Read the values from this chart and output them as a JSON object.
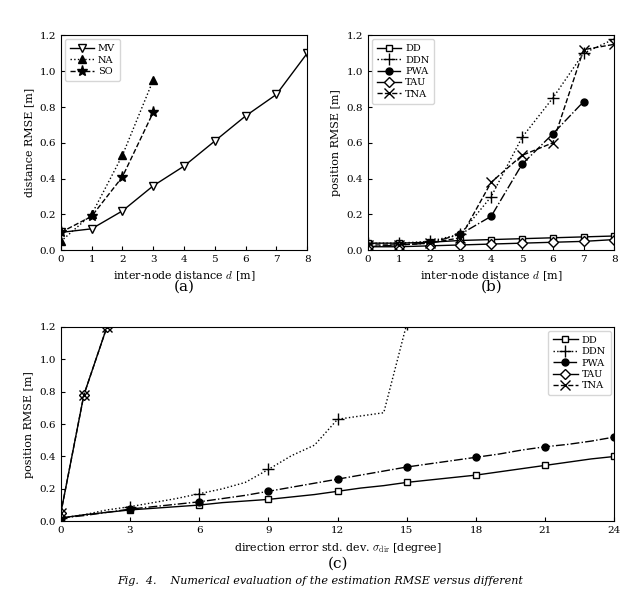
{
  "subplot_a": {
    "xlabel": "inter-node distance $d$ [m]",
    "ylabel": "distance RMSE [m]",
    "xlim": [
      0,
      8
    ],
    "ylim": [
      0,
      1.2
    ],
    "yticks": [
      0,
      0.2,
      0.4,
      0.6,
      0.8,
      1.0,
      1.2
    ],
    "xticks": [
      0,
      1,
      2,
      3,
      4,
      5,
      6,
      7,
      8
    ],
    "legend_loc": "upper left",
    "label": "(a)",
    "series": {
      "MV": {
        "x": [
          0,
          1,
          2,
          3,
          4,
          5,
          6,
          7,
          8
        ],
        "y": [
          0.1,
          0.12,
          0.22,
          0.36,
          0.47,
          0.61,
          0.75,
          0.87,
          1.1
        ],
        "linestyle": "-",
        "marker": "v",
        "mfc": "white",
        "markersize": 6,
        "markevery": 1
      },
      "NA": {
        "x": [
          0,
          1,
          2,
          3
        ],
        "y": [
          0.05,
          0.2,
          0.53,
          0.95
        ],
        "linestyle": ":",
        "marker": "^",
        "mfc": "black",
        "markersize": 6,
        "markevery": 1
      },
      "SO": {
        "x": [
          0,
          1,
          2,
          3
        ],
        "y": [
          0.1,
          0.19,
          0.41,
          0.77
        ],
        "linestyle": "--",
        "marker": "*",
        "mfc": "black",
        "markersize": 8,
        "markevery": 1
      }
    }
  },
  "subplot_b": {
    "xlabel": "inter-node distance $d$ [m]",
    "ylabel": "position RMSE [m]",
    "xlim": [
      0,
      8
    ],
    "ylim": [
      0,
      1.2
    ],
    "yticks": [
      0,
      0.2,
      0.4,
      0.6,
      0.8,
      1.0,
      1.2
    ],
    "xticks": [
      0,
      1,
      2,
      3,
      4,
      5,
      6,
      7,
      8
    ],
    "legend_loc": "upper left",
    "label": "(b)",
    "series": {
      "DD": {
        "x": [
          0,
          1,
          2,
          3,
          4,
          5,
          6,
          7,
          8
        ],
        "y": [
          0.04,
          0.04,
          0.045,
          0.055,
          0.06,
          0.065,
          0.07,
          0.075,
          0.08
        ],
        "linestyle": "-",
        "marker": "s",
        "mfc": "white",
        "markersize": 5,
        "markevery": 1
      },
      "DDN": {
        "x": [
          0,
          1,
          2,
          3,
          4,
          5,
          6,
          7,
          8
        ],
        "y": [
          0.04,
          0.04,
          0.05,
          0.09,
          0.3,
          0.63,
          0.85,
          1.1,
          1.18
        ],
        "linestyle": ":",
        "marker": "+",
        "mfc": "black",
        "markersize": 8,
        "markevery": 1
      },
      "PWA": {
        "x": [
          0,
          1,
          2,
          3,
          4,
          5,
          6,
          7
        ],
        "y": [
          0.02,
          0.03,
          0.04,
          0.09,
          0.19,
          0.48,
          0.65,
          0.83
        ],
        "linestyle": "-.",
        "marker": "o",
        "mfc": "black",
        "markersize": 5,
        "markevery": 1
      },
      "TAU": {
        "x": [
          0,
          1,
          2,
          3,
          4,
          5,
          6,
          7,
          8
        ],
        "y": [
          0.02,
          0.02,
          0.025,
          0.03,
          0.035,
          0.04,
          0.045,
          0.05,
          0.06
        ],
        "linestyle": "-",
        "marker": "D",
        "mfc": "white",
        "markersize": 5,
        "markevery": 1
      },
      "TNA": {
        "x": [
          0,
          1,
          2,
          3,
          4,
          5,
          6,
          7,
          8
        ],
        "y": [
          0.03,
          0.03,
          0.04,
          0.07,
          0.38,
          0.53,
          0.6,
          1.12,
          1.15
        ],
        "linestyle": "--",
        "marker": "x",
        "mfc": "black",
        "markersize": 7,
        "markevery": 1
      }
    }
  },
  "subplot_c": {
    "xlabel": "direction error std. dev. $\\sigma_{\\mathrm{dir}}$ [degree]",
    "ylabel": "position RMSE [m]",
    "xlim": [
      0,
      24
    ],
    "ylim": [
      0,
      1.2
    ],
    "yticks": [
      0,
      0.2,
      0.4,
      0.6,
      0.8,
      1.0,
      1.2
    ],
    "xticks": [
      0,
      3,
      6,
      9,
      12,
      15,
      18,
      21,
      24
    ],
    "legend_loc": "upper right",
    "label": "(c)",
    "series": {
      "DD": {
        "x": [
          0,
          1,
          2,
          3,
          4,
          5,
          6,
          7,
          8,
          9,
          10,
          11,
          12,
          13,
          14,
          15,
          16,
          17,
          18,
          19,
          20,
          21,
          22,
          23,
          24
        ],
        "y": [
          0.02,
          0.04,
          0.055,
          0.07,
          0.08,
          0.09,
          0.1,
          0.115,
          0.125,
          0.135,
          0.15,
          0.165,
          0.185,
          0.205,
          0.22,
          0.24,
          0.255,
          0.27,
          0.285,
          0.305,
          0.325,
          0.345,
          0.365,
          0.385,
          0.4
        ],
        "linestyle": "-",
        "marker": "s",
        "mfc": "white",
        "markersize": 5,
        "markevery": 3
      },
      "DDN": {
        "x": [
          0,
          1,
          2,
          3,
          4,
          5,
          6,
          7,
          8,
          9,
          10,
          11,
          12,
          13,
          14,
          15,
          16,
          17
        ],
        "y": [
          0.02,
          0.04,
          0.07,
          0.09,
          0.115,
          0.14,
          0.17,
          0.2,
          0.24,
          0.32,
          0.405,
          0.47,
          0.63,
          0.65,
          0.67,
          1.22,
          1.2,
          1.2
        ],
        "linestyle": ":",
        "marker": "+",
        "mfc": "black",
        "markersize": 8,
        "markevery": 3
      },
      "PWA": {
        "x": [
          0,
          1,
          2,
          3,
          4,
          5,
          6,
          7,
          8,
          9,
          10,
          11,
          12,
          13,
          14,
          15,
          16,
          17,
          18,
          19,
          20,
          21,
          22,
          23,
          24
        ],
        "y": [
          0.02,
          0.035,
          0.055,
          0.075,
          0.09,
          0.105,
          0.12,
          0.14,
          0.16,
          0.185,
          0.21,
          0.235,
          0.26,
          0.285,
          0.31,
          0.335,
          0.355,
          0.375,
          0.395,
          0.415,
          0.44,
          0.46,
          0.475,
          0.495,
          0.52
        ],
        "linestyle": "-.",
        "marker": "o",
        "mfc": "black",
        "markersize": 5,
        "markevery": 3
      },
      "TAU": {
        "x": [
          0,
          1,
          2
        ],
        "y": [
          0.05,
          0.78,
          1.2
        ],
        "linestyle": "-",
        "marker": "D",
        "mfc": "white",
        "markersize": 5,
        "markevery": 1
      },
      "TNA": {
        "x": [
          0,
          1,
          2
        ],
        "y": [
          0.05,
          0.78,
          1.2
        ],
        "linestyle": "--",
        "marker": "x",
        "mfc": "black",
        "markersize": 7,
        "markevery": 1
      }
    }
  },
  "caption": "Fig.  4.    Numerical evaluation of the estimation RMSE versus different"
}
